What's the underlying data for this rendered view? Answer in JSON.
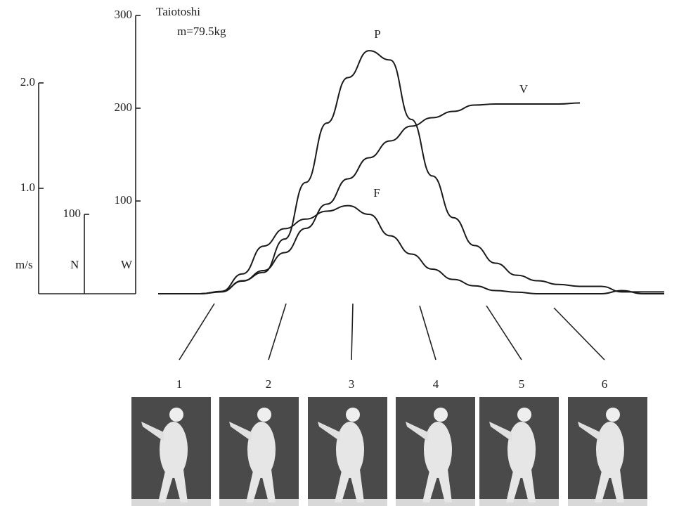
{
  "chart_data": {
    "type": "line",
    "title": "Taiotoshi",
    "subtitle": "m=79.5kg",
    "categories": [
      null,
      null,
      null,
      null,
      null,
      null,
      null,
      null,
      null,
      null,
      null,
      null,
      null,
      null,
      null,
      null,
      null,
      null,
      null,
      null,
      null,
      null,
      null,
      null,
      null
    ],
    "series": [
      {
        "name": "P",
        "axis": "y",
        "color": "#1a1a1a",
        "values": [
          0,
          0,
          0,
          2,
          14,
          23,
          59,
          120,
          184,
          233,
          262,
          252,
          188,
          127,
          82,
          52,
          33,
          20,
          14,
          10,
          8,
          8,
          2,
          2,
          2
        ]
      },
      {
        "name": "V",
        "axis": "y3",
        "color": "#1a1a1a",
        "values": [
          0,
          0,
          0,
          0.02,
          0.12,
          0.22,
          0.39,
          0.62,
          0.85,
          1.09,
          1.29,
          1.45,
          1.59,
          1.67,
          1.73,
          1.79,
          1.8,
          1.8,
          1.8,
          1.8,
          1.81,
          null,
          null,
          null,
          null
        ]
      },
      {
        "name": "F",
        "axis": "y2",
        "color": "#1a1a1a",
        "values": [
          0,
          0,
          0,
          3,
          25,
          60,
          82,
          94,
          104,
          111,
          100,
          73,
          50,
          31,
          18,
          10,
          4,
          2,
          0,
          0,
          0,
          0,
          4,
          0,
          0
        ]
      }
    ],
    "ylabel": "W",
    "ylim": [
      0,
      300
    ],
    "yticks": [
      100,
      200,
      300
    ],
    "y2label": "N",
    "y2lim": [
      0,
      100
    ],
    "y2ticks": [
      100
    ],
    "y3label": "m/s",
    "y3lim": [
      0,
      2
    ],
    "y3ticks": [
      {
        "value": 1,
        "label": "1.0"
      },
      {
        "value": 2,
        "label": "2.0"
      }
    ],
    "annotations": [
      "1",
      "2",
      "3",
      "4",
      "5",
      "6"
    ]
  }
}
